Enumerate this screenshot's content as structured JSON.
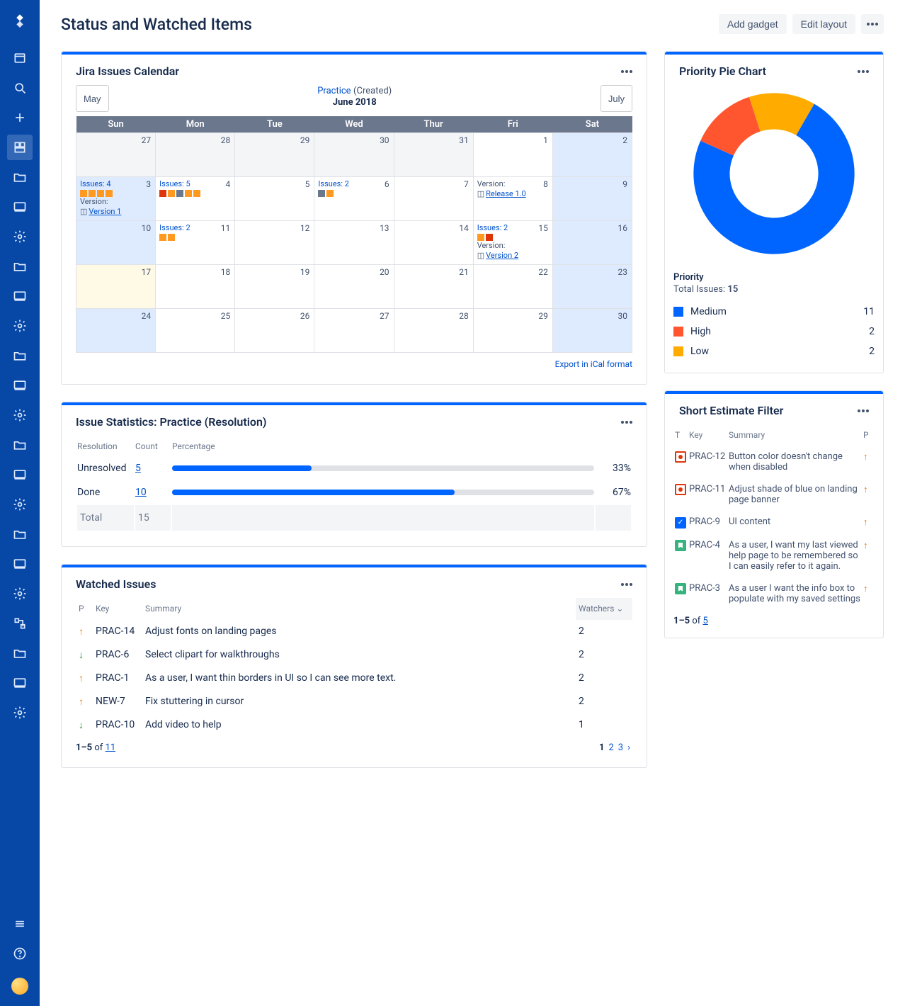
{
  "page": {
    "title": "Status and Watched Items"
  },
  "header_buttons": {
    "add_gadget": "Add gadget",
    "edit_layout": "Edit layout"
  },
  "sidebar_icons": [
    "logo",
    "board",
    "search",
    "plus",
    "dashboard",
    "folder",
    "monitor",
    "gear",
    "folder",
    "monitor",
    "gear",
    "folder",
    "monitor",
    "gear",
    "folder",
    "monitor",
    "gear",
    "folder",
    "monitor",
    "gear",
    "tree",
    "folder",
    "monitor",
    "gear"
  ],
  "sidebar_active_index": 4,
  "calendar": {
    "title": "Jira Issues Calendar",
    "filter_name": "Practice",
    "filter_suffix": "(Created)",
    "month_label": "June 2018",
    "prev_label": "May",
    "next_label": "July",
    "day_headers": [
      "Sun",
      "Mon",
      "Tue",
      "Wed",
      "Thur",
      "Fri",
      "Sat"
    ],
    "export_link": "Export in iCal format",
    "issue_colors": {
      "orange": "#ff991f",
      "red": "#de350b",
      "gray": "#6b778c"
    },
    "weeks": [
      [
        {
          "num": 27,
          "other": true
        },
        {
          "num": 28,
          "other": true
        },
        {
          "num": 29,
          "other": true
        },
        {
          "num": 30,
          "other": true
        },
        {
          "num": 31,
          "other": true
        },
        {
          "num": 1
        },
        {
          "num": 2,
          "weekend": true
        }
      ],
      [
        {
          "num": 3,
          "weekend": true,
          "issues": {
            "label": "Issues: 4",
            "colors": [
              "orange",
              "orange",
              "orange",
              "orange"
            ]
          },
          "version": "Version 1"
        },
        {
          "num": 4,
          "issues": {
            "label": "Issues: 5",
            "colors": [
              "red",
              "orange",
              "gray",
              "orange",
              "orange"
            ]
          }
        },
        {
          "num": 5
        },
        {
          "num": 6,
          "issues": {
            "label": "Issues: 2",
            "colors": [
              "gray",
              "orange"
            ]
          }
        },
        {
          "num": 7
        },
        {
          "num": 8,
          "version": "Release 1.0",
          "version_label": "Version:"
        },
        {
          "num": 9,
          "weekend": true
        }
      ],
      [
        {
          "num": 10,
          "weekend": true
        },
        {
          "num": 11,
          "issues": {
            "label": "Issues: 2",
            "colors": [
              "orange",
              "orange"
            ]
          }
        },
        {
          "num": 12
        },
        {
          "num": 13
        },
        {
          "num": 14
        },
        {
          "num": 15,
          "issues": {
            "label": "Issues: 2",
            "colors": [
              "orange",
              "red"
            ]
          },
          "version": "Version 2",
          "version_label": "Version:"
        },
        {
          "num": 16,
          "weekend": true
        }
      ],
      [
        {
          "num": 17,
          "weekend": true,
          "today": true
        },
        {
          "num": 18
        },
        {
          "num": 19
        },
        {
          "num": 20
        },
        {
          "num": 21
        },
        {
          "num": 22
        },
        {
          "num": 23,
          "weekend": true
        }
      ],
      [
        {
          "num": 24,
          "weekend": true
        },
        {
          "num": 25
        },
        {
          "num": 26
        },
        {
          "num": 27
        },
        {
          "num": 28
        },
        {
          "num": 29
        },
        {
          "num": 30,
          "weekend": true
        }
      ]
    ]
  },
  "pie": {
    "title": "Priority Pie Chart",
    "legend_title": "Priority",
    "total_label": "Total Issues:",
    "total": 15,
    "inner_radius": 55,
    "outer_radius": 100,
    "start_angle": -60,
    "slices": [
      {
        "label": "Medium",
        "value": 11,
        "color": "#0065ff"
      },
      {
        "label": "High",
        "value": 2,
        "color": "#ff5630"
      },
      {
        "label": "Low",
        "value": 2,
        "color": "#ffab00"
      }
    ]
  },
  "stats": {
    "title": "Issue Statistics: Practice (Resolution)",
    "cols": {
      "resolution": "Resolution",
      "count": "Count",
      "percentage": "Percentage"
    },
    "rows": [
      {
        "label": "Unresolved",
        "count": 5,
        "pct": 33
      },
      {
        "label": "Done",
        "count": 10,
        "pct": 67
      }
    ],
    "total_label": "Total",
    "total_count": 15,
    "bar_color": "#0065ff",
    "track_color": "#dfe1e6"
  },
  "watched": {
    "title": "Watched Issues",
    "cols": {
      "p": "P",
      "key": "Key",
      "summary": "Summary",
      "watchers": "Watchers"
    },
    "rows": [
      {
        "p": "up-o",
        "key": "PRAC-14",
        "summary": "Adjust fonts on landing pages",
        "watchers": 2
      },
      {
        "p": "down",
        "key": "PRAC-6",
        "summary": "Select clipart for walkthroughs",
        "watchers": 2
      },
      {
        "p": "up-o",
        "key": "PRAC-1",
        "summary": "As a user, I want thin borders in UI so I can see more text.",
        "watchers": 2
      },
      {
        "p": "up-o",
        "key": "NEW-7",
        "summary": "Fix stuttering in cursor",
        "watchers": 2
      },
      {
        "p": "down",
        "key": "PRAC-10",
        "summary": "Add video to help",
        "watchers": 1
      }
    ],
    "range": "1–5",
    "of_label": "of",
    "total": 11,
    "pages": [
      1,
      2,
      3
    ]
  },
  "sef": {
    "title": "Short Estimate Filter",
    "cols": {
      "t": "T",
      "key": "Key",
      "summary": "Summary",
      "p": "P"
    },
    "rows": [
      {
        "t": "bug",
        "key": "PRAC-12",
        "summary": "Button color doesn't change when disabled",
        "p": "up-o"
      },
      {
        "t": "bug",
        "key": "PRAC-11",
        "summary": "Adjust shade of blue on landing page banner",
        "p": "up-o"
      },
      {
        "t": "task",
        "key": "PRAC-9",
        "summary": "UI content",
        "p": "up-o"
      },
      {
        "t": "story",
        "key": "PRAC-4",
        "summary": "As a user, I want my last viewed help page to be remembered so I can easily refer to it again.",
        "p": "up-o"
      },
      {
        "t": "story",
        "key": "PRAC-3",
        "summary": "As a user I want the info box to populate with my saved settings",
        "p": "up-o"
      }
    ],
    "range": "1–5",
    "of_label": "of",
    "total": 5
  }
}
